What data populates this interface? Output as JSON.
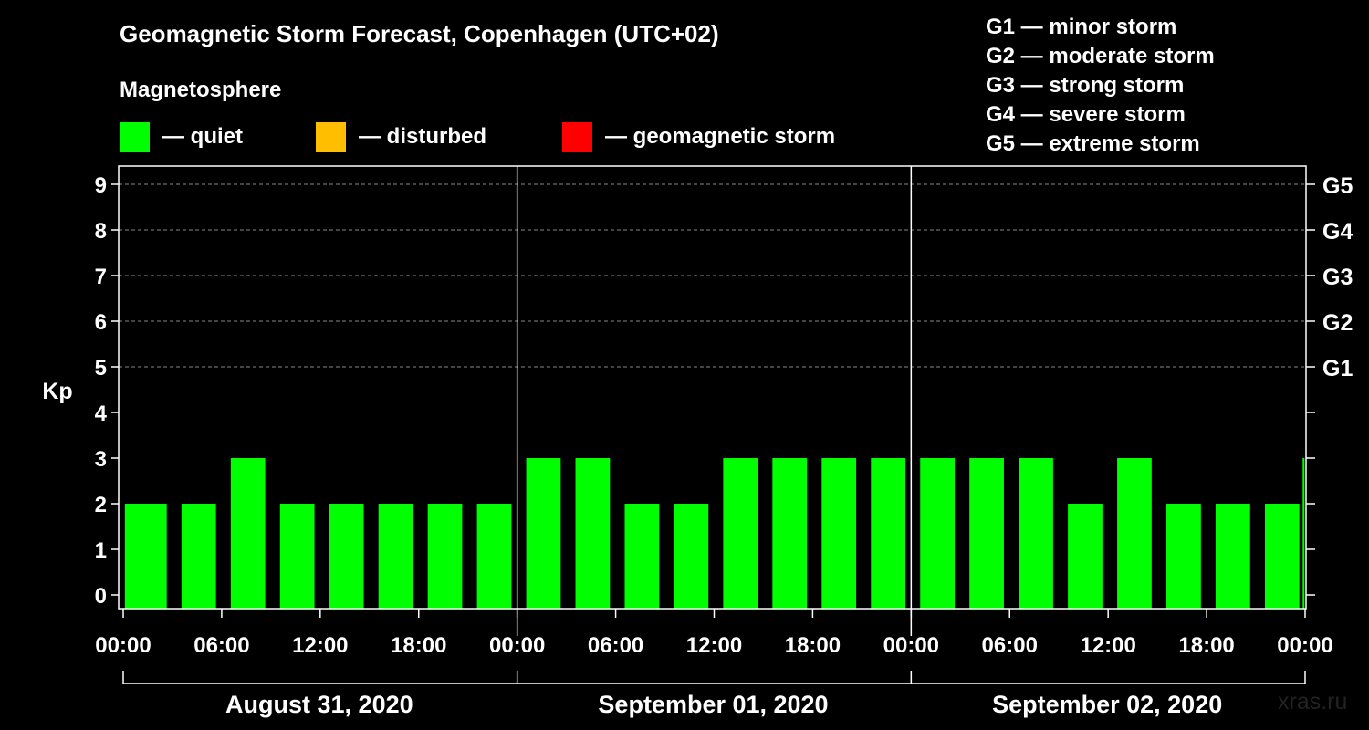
{
  "title": "Geomagnetic Storm Forecast, Copenhagen (UTC+02)",
  "magnetosphere_heading": "Magnetosphere",
  "legend": [
    {
      "label": "— quiet",
      "color": "#00ff00"
    },
    {
      "label": "— disturbed",
      "color": "#ffbf00"
    },
    {
      "label": "— geomagnetic storm",
      "color": "#ff0000"
    }
  ],
  "g_levels": [
    "G1 — minor storm",
    "G2 — moderate storm",
    "G3 — strong storm",
    "G4 — severe storm",
    "G5 — extreme storm"
  ],
  "watermark": "xras.ru",
  "chart_data": {
    "type": "bar",
    "title": "Geomagnetic Storm Forecast, Copenhagen (UTC+02)",
    "ylabel": "Kp",
    "ylim": [
      0,
      9
    ],
    "yticks": [
      0,
      1,
      2,
      3,
      4,
      5,
      6,
      7,
      8,
      9
    ],
    "right_axis_labels": [
      {
        "kp": 5,
        "label": "G1"
      },
      {
        "kp": 6,
        "label": "G2"
      },
      {
        "kp": 7,
        "label": "G3"
      },
      {
        "kp": 8,
        "label": "G4"
      },
      {
        "kp": 9,
        "label": "G5"
      }
    ],
    "xticks": [
      "00:00",
      "06:00",
      "12:00",
      "18:00",
      "00:00",
      "06:00",
      "12:00",
      "18:00",
      "00:00",
      "06:00",
      "12:00",
      "18:00",
      "00:00"
    ],
    "days": [
      "August 31, 2020",
      "September 01, 2020",
      "September 02, 2020"
    ],
    "interval_hours": 3,
    "start_hour": -0.9,
    "end_hour": 72,
    "values": [
      2,
      2,
      3,
      2,
      2,
      2,
      2,
      2,
      3,
      3,
      2,
      2,
      3,
      3,
      3,
      3,
      3,
      3,
      3,
      2,
      3,
      2,
      2,
      2,
      3
    ],
    "color": "#00ff00",
    "grid": "dashed horizontal"
  }
}
